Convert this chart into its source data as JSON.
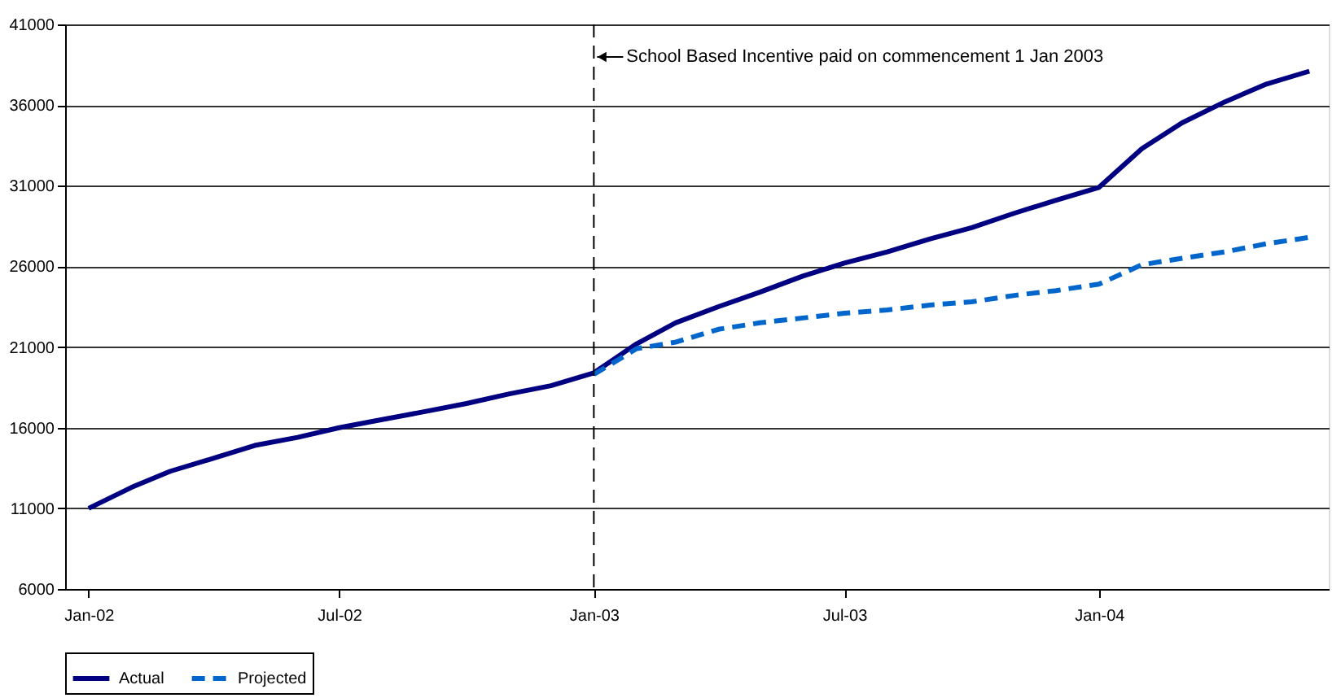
{
  "chart_data": {
    "type": "line",
    "x": [
      "2002-01",
      "2002-02",
      "2002-03",
      "2002-04",
      "2002-05",
      "2002-06",
      "2002-07",
      "2002-08",
      "2002-09",
      "2002-10",
      "2002-11",
      "2002-12",
      "2003-01",
      "2003-02",
      "2003-03",
      "2003-04",
      "2003-05",
      "2003-06",
      "2003-07",
      "2003-08",
      "2003-09",
      "2003-10",
      "2003-11",
      "2003-12",
      "2004-01",
      "2004-02",
      "2004-03",
      "2004-04",
      "2004-05",
      "2004-06"
    ],
    "series": [
      {
        "name": "Actual",
        "color": "#000080",
        "line_style": "solid",
        "values": [
          11000,
          12300,
          13300,
          14100,
          14900,
          15400,
          16000,
          16500,
          17000,
          17500,
          18100,
          18600,
          19400,
          21200,
          22500,
          23500,
          24400,
          25400,
          26200,
          26900,
          27700,
          28400,
          29300,
          30100,
          30900,
          33300,
          34900,
          36200,
          37300,
          38100
        ]
      },
      {
        "name": "Projected",
        "color": "#0066cc",
        "line_style": "dashed",
        "values": [
          null,
          null,
          null,
          null,
          null,
          null,
          null,
          null,
          null,
          null,
          null,
          null,
          19300,
          20900,
          21300,
          22100,
          22500,
          22800,
          23100,
          23300,
          23600,
          23800,
          24200,
          24500,
          24900,
          26100,
          26500,
          26900,
          27400,
          27800
        ]
      }
    ],
    "xlim": [
      "2001-12-15",
      "2004-06-15"
    ],
    "xticks": [
      {
        "value": "2002-01",
        "label": "Jan-02"
      },
      {
        "value": "2002-07",
        "label": "Jul-02"
      },
      {
        "value": "2003-01",
        "label": "Jan-03"
      },
      {
        "value": "2003-07",
        "label": "Jul-03"
      },
      {
        "value": "2004-01",
        "label": "Jan-04"
      }
    ],
    "ylim": [
      6000,
      41000
    ],
    "yticks": [
      6000,
      11000,
      16000,
      21000,
      26000,
      31000,
      36000,
      41000
    ],
    "ref_lines": [
      {
        "axis": "x",
        "value": "2003-01",
        "label": "School Based Incentive paid on commencement 1 Jan 2003",
        "color": "#000000",
        "line_style": "dashed"
      }
    ],
    "grid": "y",
    "legend": "bottom",
    "marker": "none"
  }
}
